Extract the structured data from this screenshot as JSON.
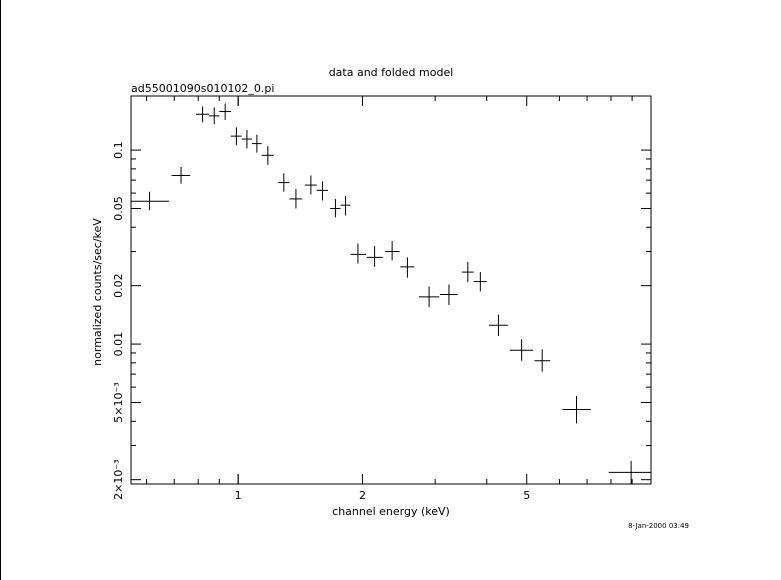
{
  "chart_data": {
    "type": "scatter",
    "title": "data and folded model",
    "subtitle": "ad55001090s010102_0.pi",
    "xlabel": "channel energy (keV)",
    "ylabel": "normalized counts/sec/keV",
    "timestamp": "8-Jan-2000 03:49",
    "xscale": "log",
    "yscale": "log",
    "xlim": [
      0.55,
      10.0
    ],
    "ylim": [
      0.0019,
      0.19
    ],
    "grid": false,
    "x_ticks": [
      {
        "value": 1,
        "label": "1"
      },
      {
        "value": 2,
        "label": "2"
      },
      {
        "value": 5,
        "label": "5"
      }
    ],
    "y_ticks": [
      {
        "value": 0.1,
        "label": "0.1"
      },
      {
        "value": 0.05,
        "label": "0.05"
      },
      {
        "value": 0.02,
        "label": "0.02"
      },
      {
        "value": 0.01,
        "label": "0.01"
      },
      {
        "value": 0.005,
        "label": "5×10⁻³"
      },
      {
        "value": 0.002,
        "label": "2×10⁻³"
      }
    ],
    "series": [
      {
        "points": [
          {
            "x": 0.61,
            "xlo": 0.55,
            "xhi": 0.68,
            "y": 0.0545,
            "ylo": 0.049,
            "yhi": 0.061
          },
          {
            "x": 0.727,
            "xlo": 0.69,
            "xhi": 0.765,
            "y": 0.074,
            "ylo": 0.067,
            "yhi": 0.082
          },
          {
            "x": 0.82,
            "xlo": 0.79,
            "xhi": 0.85,
            "y": 0.153,
            "ylo": 0.139,
            "yhi": 0.168
          },
          {
            "x": 0.875,
            "xlo": 0.85,
            "xhi": 0.9,
            "y": 0.15,
            "ylo": 0.136,
            "yhi": 0.166
          },
          {
            "x": 0.93,
            "xlo": 0.9,
            "xhi": 0.96,
            "y": 0.158,
            "ylo": 0.143,
            "yhi": 0.174
          },
          {
            "x": 0.99,
            "xlo": 0.96,
            "xhi": 1.02,
            "y": 0.118,
            "ylo": 0.106,
            "yhi": 0.131
          },
          {
            "x": 1.05,
            "xlo": 1.02,
            "xhi": 1.08,
            "y": 0.114,
            "ylo": 0.102,
            "yhi": 0.127
          },
          {
            "x": 1.11,
            "xlo": 1.08,
            "xhi": 1.14,
            "y": 0.108,
            "ylo": 0.097,
            "yhi": 0.12
          },
          {
            "x": 1.18,
            "xlo": 1.14,
            "xhi": 1.22,
            "y": 0.094,
            "ylo": 0.084,
            "yhi": 0.105
          },
          {
            "x": 1.29,
            "xlo": 1.25,
            "xhi": 1.33,
            "y": 0.068,
            "ylo": 0.061,
            "yhi": 0.076
          },
          {
            "x": 1.38,
            "xlo": 1.33,
            "xhi": 1.43,
            "y": 0.056,
            "ylo": 0.05,
            "yhi": 0.063
          },
          {
            "x": 1.5,
            "xlo": 1.45,
            "xhi": 1.55,
            "y": 0.066,
            "ylo": 0.059,
            "yhi": 0.074
          },
          {
            "x": 1.6,
            "xlo": 1.55,
            "xhi": 1.65,
            "y": 0.062,
            "ylo": 0.055,
            "yhi": 0.069
          },
          {
            "x": 1.72,
            "xlo": 1.67,
            "xhi": 1.77,
            "y": 0.05,
            "ylo": 0.045,
            "yhi": 0.056
          },
          {
            "x": 1.82,
            "xlo": 1.77,
            "xhi": 1.87,
            "y": 0.052,
            "ylo": 0.046,
            "yhi": 0.058
          },
          {
            "x": 1.95,
            "xlo": 1.87,
            "xhi": 2.04,
            "y": 0.029,
            "ylo": 0.026,
            "yhi": 0.033
          },
          {
            "x": 2.14,
            "xlo": 2.05,
            "xhi": 2.24,
            "y": 0.028,
            "ylo": 0.025,
            "yhi": 0.032
          },
          {
            "x": 2.36,
            "xlo": 2.27,
            "xhi": 2.46,
            "y": 0.03,
            "ylo": 0.027,
            "yhi": 0.034
          },
          {
            "x": 2.57,
            "xlo": 2.47,
            "xhi": 2.67,
            "y": 0.025,
            "ylo": 0.022,
            "yhi": 0.028
          },
          {
            "x": 2.9,
            "xlo": 2.74,
            "xhi": 3.07,
            "y": 0.0175,
            "ylo": 0.0155,
            "yhi": 0.0198
          },
          {
            "x": 3.24,
            "xlo": 3.08,
            "xhi": 3.4,
            "y": 0.018,
            "ylo": 0.0159,
            "yhi": 0.0203
          },
          {
            "x": 3.6,
            "xlo": 3.48,
            "xhi": 3.72,
            "y": 0.0235,
            "ylo": 0.0209,
            "yhi": 0.0265
          },
          {
            "x": 3.86,
            "xlo": 3.72,
            "xhi": 4.0,
            "y": 0.021,
            "ylo": 0.0187,
            "yhi": 0.0235
          },
          {
            "x": 4.27,
            "xlo": 4.05,
            "xhi": 4.5,
            "y": 0.0125,
            "ylo": 0.011,
            "yhi": 0.0142
          },
          {
            "x": 4.86,
            "xlo": 4.55,
            "xhi": 5.18,
            "y": 0.0093,
            "ylo": 0.0082,
            "yhi": 0.0106
          },
          {
            "x": 5.45,
            "xlo": 5.22,
            "xhi": 5.7,
            "y": 0.0082,
            "ylo": 0.0072,
            "yhi": 0.0094
          },
          {
            "x": 6.6,
            "xlo": 6.1,
            "xhi": 7.15,
            "y": 0.0046,
            "ylo": 0.0039,
            "yhi": 0.0054
          },
          {
            "x": 8.95,
            "xlo": 7.9,
            "xhi": 10.0,
            "y": 0.00218,
            "ylo": 0.0019,
            "yhi": 0.0025
          }
        ]
      }
    ]
  }
}
